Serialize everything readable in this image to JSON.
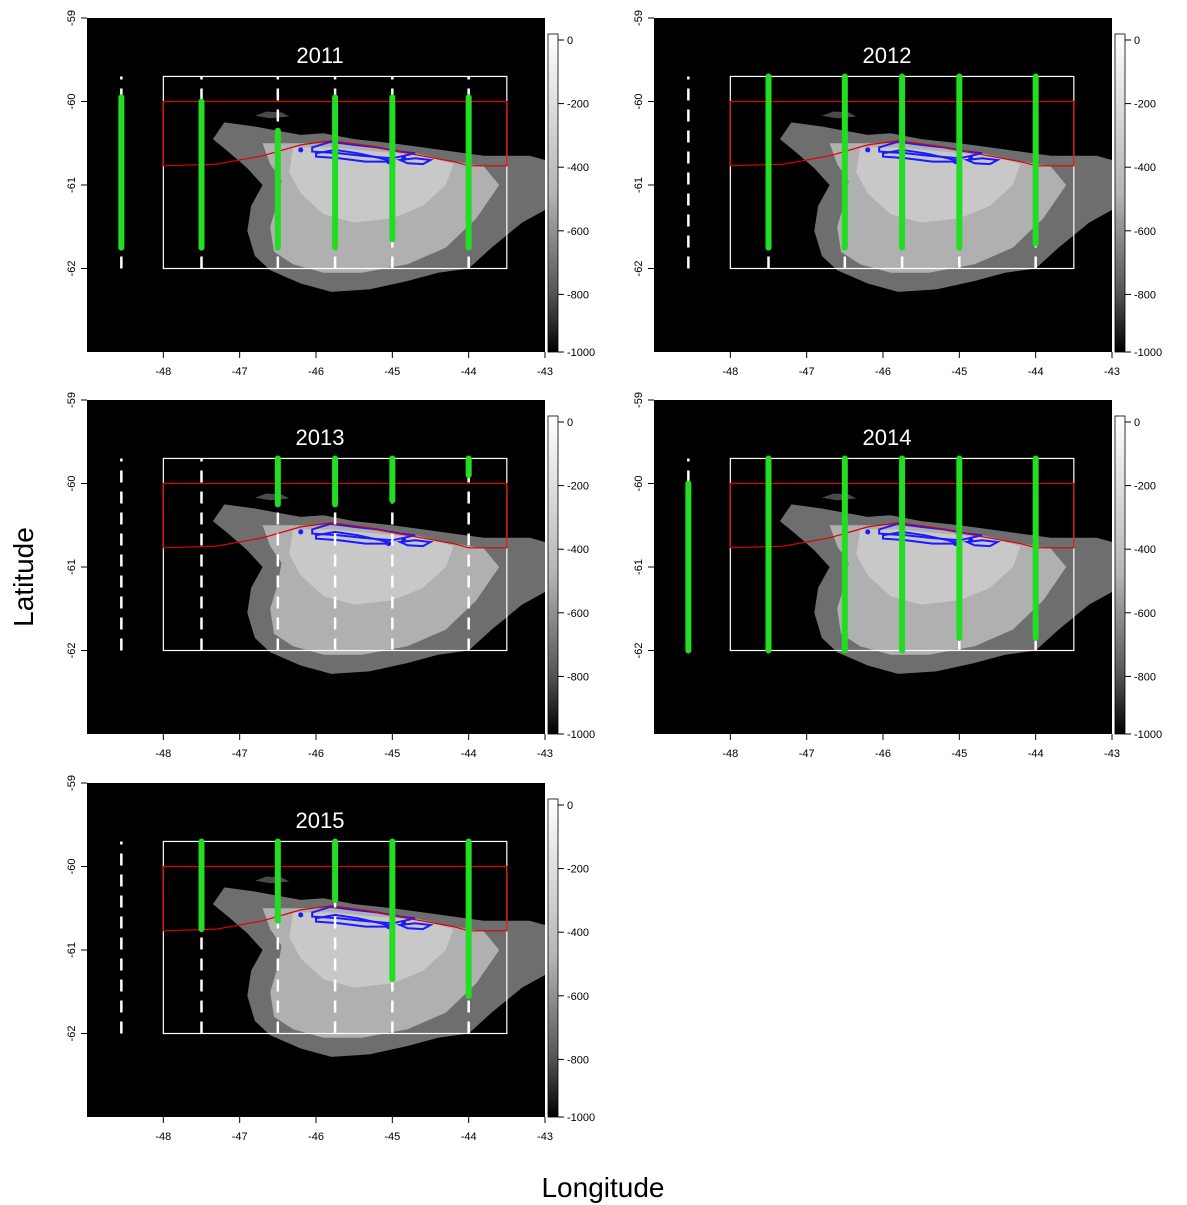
{
  "figure": {
    "xlabel": "Longitude",
    "ylabel": "Latitude"
  },
  "chart_data": {
    "type": "map",
    "xlim": [
      -49,
      -43
    ],
    "ylim": [
      -63,
      -59
    ],
    "x_ticks": [
      -48,
      -47,
      -46,
      -45,
      -44,
      -43
    ],
    "y_ticks": [
      -62,
      -61,
      -60,
      -59
    ],
    "colorbar": {
      "ticks": [
        0,
        -200,
        -400,
        -600,
        -800,
        -1000
      ],
      "range": [
        -1000,
        0
      ],
      "colormap": "grayscale"
    },
    "box_white": {
      "lon": [
        -48,
        -43.5
      ],
      "lat": [
        -62,
        -59.7
      ]
    },
    "box_red": {
      "lon": [
        -48,
        -43.5
      ],
      "lat": [
        -60.77,
        -60
      ]
    },
    "planned_transect_lons": [
      -48.55,
      -47.5,
      -46.5,
      -45.75,
      -45.0,
      -44.0
    ],
    "planned_transect_lat": [
      -62,
      -59.7
    ],
    "colors": {
      "survey_track": "#22dd22",
      "planned_transect": "#ffffff",
      "red_box": "#dd0000",
      "white_box": "#ffffff",
      "contour": "#1a1aff",
      "background": "#000000"
    },
    "panels": [
      {
        "title": "2011",
        "tracks": [
          {
            "lon": -48.55,
            "lat": [
              -61.75,
              -59.95
            ]
          },
          {
            "lon": -47.5,
            "lat": [
              -61.75,
              -60.0
            ]
          },
          {
            "lon": -46.5,
            "lat": [
              -61.75,
              -60.35
            ]
          },
          {
            "lon": -45.75,
            "lat": [
              -61.75,
              -59.95
            ]
          },
          {
            "lon": -45.0,
            "lat": [
              -61.65,
              -59.95
            ]
          },
          {
            "lon": -44.0,
            "lat": [
              -61.75,
              -59.95
            ]
          }
        ]
      },
      {
        "title": "2012",
        "tracks": [
          {
            "lon": -47.5,
            "lat": [
              -61.75,
              -59.7
            ]
          },
          {
            "lon": -46.5,
            "lat": [
              -61.75,
              -59.7
            ]
          },
          {
            "lon": -45.75,
            "lat": [
              -61.75,
              -59.7
            ]
          },
          {
            "lon": -45.0,
            "lat": [
              -61.75,
              -59.7
            ]
          },
          {
            "lon": -44.0,
            "lat": [
              -61.7,
              -59.7
            ]
          }
        ]
      },
      {
        "title": "2013",
        "tracks": [
          {
            "lon": -46.5,
            "lat": [
              -60.25,
              -59.7
            ]
          },
          {
            "lon": -45.75,
            "lat": [
              -60.25,
              -59.7
            ]
          },
          {
            "lon": -45.0,
            "lat": [
              -60.2,
              -59.7
            ]
          },
          {
            "lon": -44.0,
            "lat": [
              -59.9,
              -59.7
            ]
          }
        ]
      },
      {
        "title": "2014",
        "tracks": [
          {
            "lon": -48.55,
            "lat": [
              -62.0,
              -60.0
            ]
          },
          {
            "lon": -47.5,
            "lat": [
              -62.0,
              -59.7
            ]
          },
          {
            "lon": -46.5,
            "lat": [
              -62.0,
              -59.7
            ]
          },
          {
            "lon": -45.75,
            "lat": [
              -62.0,
              -59.7
            ]
          },
          {
            "lon": -45.0,
            "lat": [
              -61.85,
              -59.7
            ]
          },
          {
            "lon": -44.0,
            "lat": [
              -61.85,
              -59.7
            ]
          }
        ]
      },
      {
        "title": "2015",
        "tracks": [
          {
            "lon": -47.5,
            "lat": [
              -60.75,
              -59.7
            ]
          },
          {
            "lon": -46.5,
            "lat": [
              -60.65,
              -59.7
            ]
          },
          {
            "lon": -45.75,
            "lat": [
              -60.4,
              -59.7
            ]
          },
          {
            "lon": -45.0,
            "lat": [
              -61.35,
              -59.7
            ]
          },
          {
            "lon": -44.0,
            "lat": [
              -61.55,
              -59.7
            ]
          }
        ]
      }
    ]
  }
}
